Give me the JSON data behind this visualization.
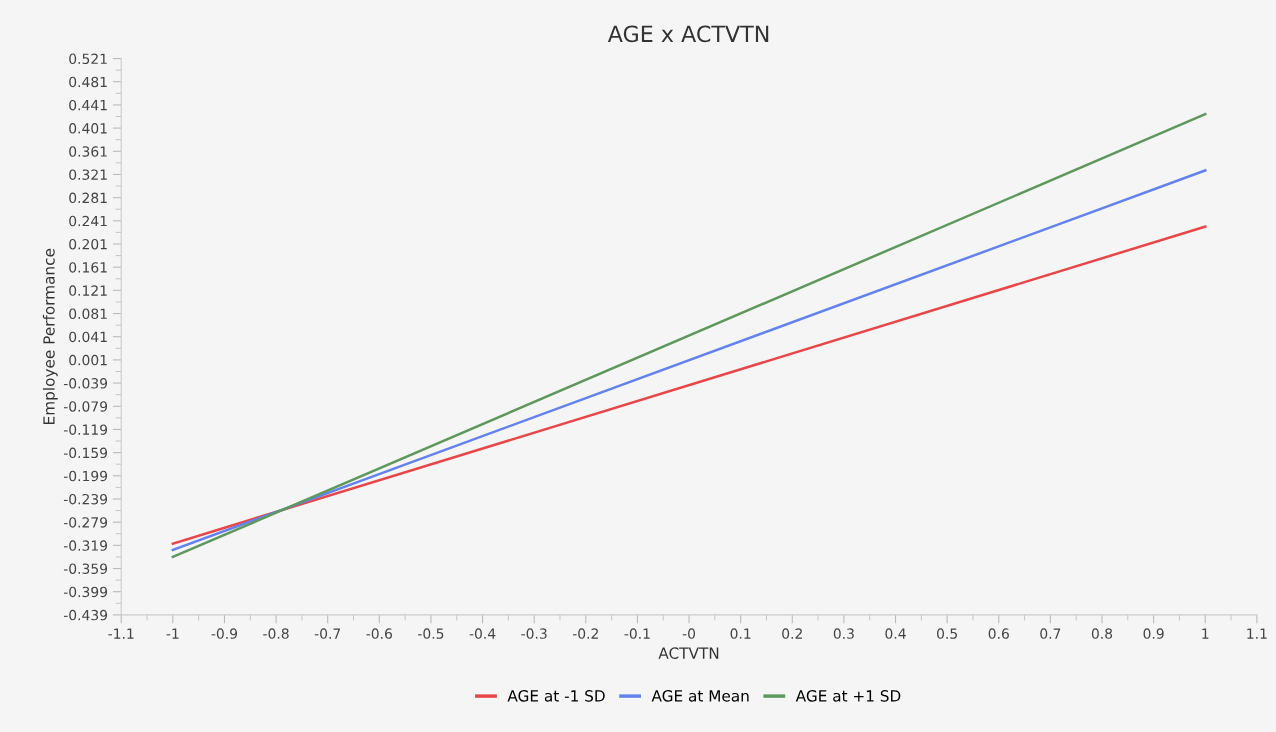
{
  "chart_data": {
    "type": "line",
    "title": "AGE x ACTVTN",
    "xlabel": "ACTVTN",
    "ylabel": "Employee Performance",
    "x": [
      -1,
      1
    ],
    "series": [
      {
        "name": "AGE at -1 SD",
        "color": "#e8474a",
        "values": [
          -0.316,
          0.231
        ]
      },
      {
        "name": "AGE at Mean",
        "color": "#6482ee",
        "values": [
          -0.327,
          0.328
        ]
      },
      {
        "name": "AGE at +1 SD",
        "color": "#5e985e",
        "values": [
          -0.339,
          0.425
        ]
      }
    ],
    "xlim": [
      -1.1,
      1.1
    ],
    "xticks": [
      -1.1,
      -1,
      -0.9,
      -0.8,
      -0.7,
      -0.6,
      -0.5,
      -0.4,
      -0.3,
      -0.2,
      -0.1,
      {
        "value": 0,
        "label": "-0"
      },
      0.1,
      0.2,
      0.3,
      0.4,
      0.5,
      0.6,
      0.7,
      0.8,
      0.9,
      1,
      1.1
    ],
    "ylim": [
      -0.439,
      0.521
    ],
    "yticks": [
      -0.439,
      -0.399,
      -0.359,
      -0.319,
      -0.279,
      -0.239,
      -0.199,
      -0.159,
      -0.119,
      -0.079,
      -0.039,
      0.001,
      0.041,
      0.081,
      0.121,
      0.161,
      0.201,
      0.241,
      0.281,
      0.321,
      0.361,
      0.401,
      0.441,
      0.481,
      0.521
    ],
    "grid": false,
    "legend": "bottom",
    "marker": "none",
    "line_style": "solid"
  }
}
